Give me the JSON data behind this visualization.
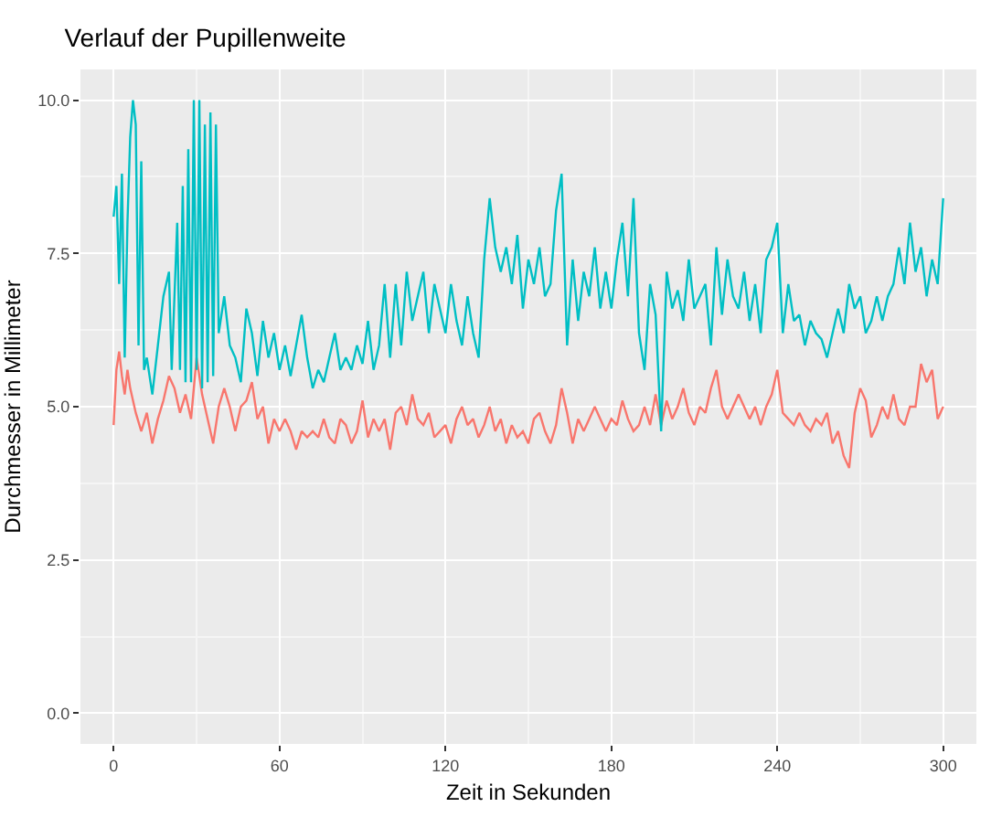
{
  "chart_data": {
    "type": "line",
    "title": "Verlauf der Pupillenweite",
    "xlabel": "Zeit in Sekunden",
    "ylabel": "Durchmesser in Millimeter",
    "xlim": [
      -12,
      312
    ],
    "xticks": [
      0,
      60,
      120,
      180,
      240,
      300
    ],
    "ylim": [
      -0.5,
      10.5
    ],
    "yticks": [
      {
        "value": 0,
        "label": "0.0"
      },
      {
        "value": 2.5,
        "label": "2.5"
      },
      {
        "value": 5,
        "label": "5.0"
      },
      {
        "value": 7.5,
        "label": "7.5"
      },
      {
        "value": 10,
        "label": "10.0"
      }
    ],
    "grid": true,
    "marker": "none",
    "line_style": "solid",
    "series": [
      {
        "color": "#f8766d",
        "x": [
          0,
          1,
          2,
          3,
          4,
          5,
          6,
          8,
          10,
          12,
          14,
          16,
          18,
          20,
          22,
          24,
          26,
          28,
          30,
          32,
          34,
          36,
          38,
          40,
          42,
          44,
          46,
          48,
          50,
          52,
          54,
          56,
          58,
          60,
          62,
          64,
          66,
          68,
          70,
          72,
          74,
          76,
          78,
          80,
          82,
          84,
          86,
          88,
          90,
          92,
          94,
          96,
          98,
          100,
          102,
          104,
          106,
          108,
          110,
          112,
          114,
          116,
          118,
          120,
          122,
          124,
          126,
          128,
          130,
          132,
          134,
          136,
          138,
          140,
          142,
          144,
          146,
          148,
          150,
          152,
          154,
          156,
          158,
          160,
          162,
          164,
          166,
          168,
          170,
          172,
          174,
          176,
          178,
          180,
          182,
          184,
          186,
          188,
          190,
          192,
          194,
          196,
          198,
          200,
          202,
          204,
          206,
          208,
          210,
          212,
          214,
          216,
          218,
          220,
          222,
          224,
          226,
          228,
          230,
          232,
          234,
          236,
          238,
          240,
          242,
          244,
          246,
          248,
          250,
          252,
          254,
          256,
          258,
          260,
          262,
          264,
          266,
          268,
          270,
          272,
          274,
          276,
          278,
          280,
          282,
          284,
          286,
          288,
          290,
          292,
          294,
          296,
          298,
          300
        ],
        "values": [
          4.7,
          5.6,
          5.9,
          5.5,
          5.2,
          5.6,
          5.3,
          4.9,
          4.6,
          4.9,
          4.4,
          4.8,
          5.1,
          5.5,
          5.3,
          4.9,
          5.2,
          4.8,
          5.8,
          5.2,
          4.8,
          4.4,
          5.0,
          5.3,
          5.0,
          4.6,
          5.0,
          5.1,
          5.4,
          4.8,
          5.0,
          4.4,
          4.8,
          4.6,
          4.8,
          4.6,
          4.3,
          4.6,
          4.5,
          4.6,
          4.5,
          4.8,
          4.5,
          4.4,
          4.8,
          4.7,
          4.4,
          4.6,
          5.1,
          4.5,
          4.8,
          4.6,
          4.8,
          4.3,
          4.9,
          5.0,
          4.7,
          5.2,
          4.8,
          4.7,
          4.9,
          4.5,
          4.6,
          4.7,
          4.4,
          4.8,
          5.0,
          4.7,
          4.8,
          4.5,
          4.7,
          5.0,
          4.6,
          4.8,
          4.4,
          4.7,
          4.5,
          4.6,
          4.4,
          4.8,
          4.9,
          4.6,
          4.4,
          4.7,
          5.3,
          4.9,
          4.4,
          4.8,
          4.6,
          4.8,
          5.0,
          4.8,
          4.6,
          4.8,
          4.7,
          5.1,
          4.8,
          4.6,
          4.7,
          5.0,
          4.7,
          5.2,
          4.7,
          5.1,
          4.8,
          5.0,
          5.3,
          4.9,
          4.7,
          5.0,
          4.9,
          5.3,
          5.6,
          5.0,
          4.8,
          5.0,
          5.2,
          5.0,
          4.8,
          5.0,
          4.7,
          5.0,
          5.2,
          5.6,
          4.9,
          4.8,
          4.7,
          4.9,
          4.7,
          4.6,
          4.8,
          4.7,
          4.9,
          4.4,
          4.6,
          4.2,
          4.0,
          4.9,
          5.3,
          5.1,
          4.5,
          4.7,
          5.0,
          4.8,
          5.2,
          4.8,
          4.7,
          5.0,
          5.0,
          5.7,
          5.4,
          5.6,
          4.8,
          5.0
        ]
      },
      {
        "color": "#00bfc4",
        "x": [
          0,
          1,
          2,
          3,
          4,
          5,
          6,
          7,
          8,
          9,
          10,
          11,
          12,
          14,
          16,
          18,
          20,
          21,
          23,
          24,
          25,
          26,
          27,
          28,
          29,
          30,
          31,
          32,
          33,
          34,
          35,
          36,
          37,
          38,
          40,
          42,
          44,
          46,
          48,
          50,
          52,
          54,
          56,
          58,
          60,
          62,
          64,
          66,
          68,
          70,
          72,
          74,
          76,
          78,
          80,
          82,
          84,
          86,
          88,
          90,
          92,
          94,
          96,
          98,
          100,
          102,
          104,
          106,
          108,
          110,
          112,
          114,
          116,
          118,
          120,
          122,
          124,
          126,
          128,
          130,
          132,
          134,
          136,
          138,
          140,
          142,
          144,
          146,
          148,
          150,
          152,
          154,
          156,
          158,
          160,
          162,
          164,
          166,
          168,
          170,
          172,
          174,
          176,
          178,
          180,
          182,
          184,
          186,
          188,
          190,
          192,
          194,
          196,
          198,
          200,
          202,
          204,
          206,
          208,
          210,
          212,
          214,
          216,
          218,
          220,
          222,
          224,
          226,
          228,
          230,
          232,
          234,
          236,
          238,
          240,
          242,
          244,
          246,
          248,
          250,
          252,
          254,
          256,
          258,
          260,
          262,
          264,
          266,
          268,
          270,
          272,
          274,
          276,
          278,
          280,
          282,
          284,
          286,
          288,
          290,
          292,
          294,
          296,
          298,
          300
        ],
        "values": [
          8.1,
          8.6,
          7.0,
          8.8,
          5.8,
          8.0,
          9.4,
          10.0,
          9.6,
          6.0,
          9.0,
          5.6,
          5.8,
          5.2,
          6.0,
          6.8,
          7.2,
          5.6,
          8.0,
          5.6,
          8.6,
          5.4,
          9.2,
          5.4,
          10.0,
          5.6,
          10.0,
          5.3,
          9.6,
          5.4,
          9.8,
          5.5,
          9.6,
          6.2,
          6.8,
          6.0,
          5.8,
          5.4,
          6.6,
          6.2,
          5.5,
          6.4,
          5.8,
          6.2,
          5.6,
          6.0,
          5.5,
          6.0,
          6.5,
          5.8,
          5.3,
          5.6,
          5.4,
          5.8,
          6.2,
          5.6,
          5.8,
          5.6,
          6.0,
          5.7,
          6.4,
          5.6,
          6.0,
          7.0,
          5.8,
          7.0,
          6.0,
          7.2,
          6.4,
          6.8,
          7.2,
          6.2,
          7.0,
          6.6,
          6.2,
          7.0,
          6.4,
          6.0,
          6.8,
          6.2,
          5.8,
          7.4,
          8.4,
          7.6,
          7.2,
          7.6,
          7.0,
          7.8,
          6.6,
          7.4,
          7.0,
          7.6,
          6.8,
          7.0,
          8.2,
          8.8,
          6.0,
          7.4,
          6.4,
          7.2,
          6.8,
          7.6,
          6.6,
          7.2,
          6.6,
          7.4,
          8.0,
          6.8,
          8.4,
          6.2,
          5.6,
          7.0,
          6.5,
          4.6,
          7.2,
          6.6,
          6.9,
          6.4,
          7.4,
          6.6,
          6.8,
          7.0,
          6.0,
          7.6,
          6.5,
          7.4,
          6.8,
          6.6,
          7.2,
          6.4,
          7.0,
          6.2,
          7.4,
          7.6,
          8.0,
          6.2,
          7.0,
          6.4,
          6.5,
          6.0,
          6.4,
          6.2,
          6.1,
          5.8,
          6.2,
          6.6,
          6.2,
          7.0,
          6.6,
          6.8,
          6.2,
          6.4,
          6.8,
          6.4,
          6.8,
          7.0,
          7.6,
          7.0,
          8.0,
          7.2,
          7.6,
          6.8,
          7.4,
          7.0,
          8.4
        ]
      }
    ]
  }
}
